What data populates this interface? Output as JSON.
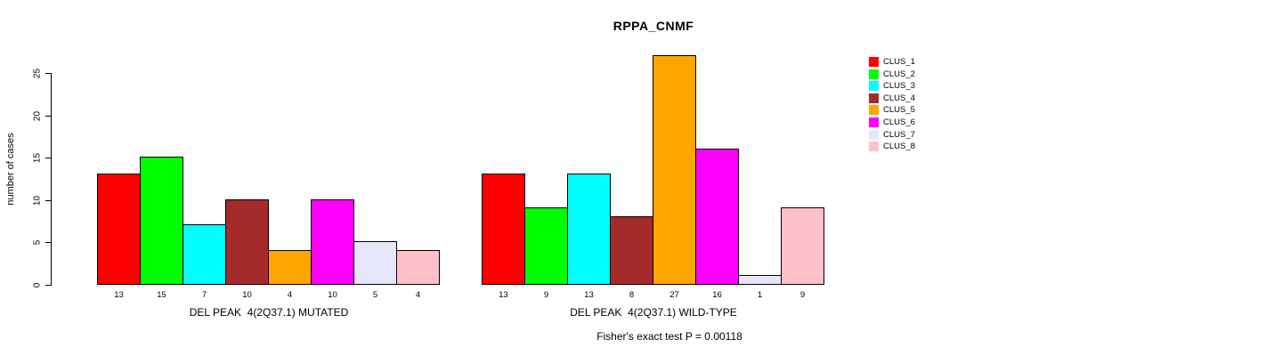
{
  "chart_data": {
    "type": "bar",
    "title": "RPPA_CNMF",
    "ylabel": "number of cases",
    "ylim": [
      0,
      27
    ],
    "yticks": [
      0,
      5,
      10,
      15,
      20,
      25
    ],
    "grid": false,
    "legend_position": "right",
    "legend": [
      {
        "label": "CLUS_1",
        "color": "#FF0000"
      },
      {
        "label": "CLUS_2",
        "color": "#00FF00"
      },
      {
        "label": "CLUS_3",
        "color": "#00FFFF"
      },
      {
        "label": "CLUS_4",
        "color": "#A52A2A"
      },
      {
        "label": "CLUS_5",
        "color": "#FFA500"
      },
      {
        "label": "CLUS_6",
        "color": "#FF00FF"
      },
      {
        "label": "CLUS_7",
        "color": "#E6E6FA"
      },
      {
        "label": "CLUS_8",
        "color": "#FFC0CB"
      }
    ],
    "groups": [
      {
        "label": "DEL PEAK  4(2Q37.1) MUTATED",
        "values": [
          13,
          15,
          7,
          10,
          4,
          10,
          5,
          4
        ]
      },
      {
        "label": "DEL PEAK  4(2Q37.1) WILD-TYPE",
        "values": [
          13,
          9,
          13,
          8,
          27,
          16,
          1,
          9
        ]
      }
    ],
    "footnote": "Fisher's exact test P = 0.00118"
  }
}
